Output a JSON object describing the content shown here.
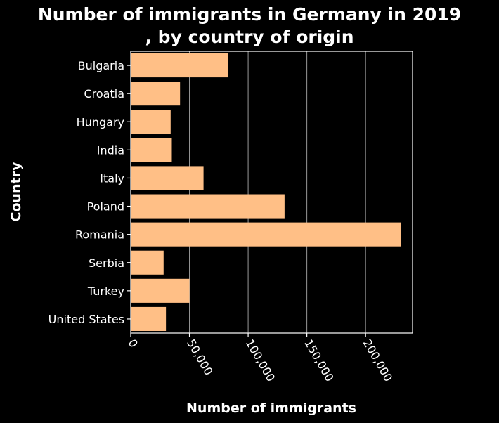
{
  "chart_data": {
    "type": "bar",
    "orientation": "horizontal",
    "title_line1": "Number of immigrants in Germany in 2019",
    "title_line2": ", by country of origin",
    "xlabel": "Number of immigrants",
    "ylabel": "Country",
    "categories": [
      "Bulgaria",
      "Croatia",
      "Hungary",
      "India",
      "Italy",
      "Poland",
      "Romania",
      "Serbia",
      "Turkey",
      "United States"
    ],
    "values": [
      83000,
      42000,
      34000,
      35000,
      62000,
      131000,
      230000,
      28000,
      50000,
      30000
    ],
    "xlim": [
      0,
      240000
    ],
    "xticks": [
      0,
      50000,
      100000,
      150000,
      200000
    ],
    "xtick_labels": [
      "0",
      "50,000",
      "100,000",
      "150,000",
      "200,000"
    ],
    "grid": "vertical",
    "bar_color": "#ffbf86",
    "background": "#000000",
    "axis_color": "#ffffff"
  }
}
